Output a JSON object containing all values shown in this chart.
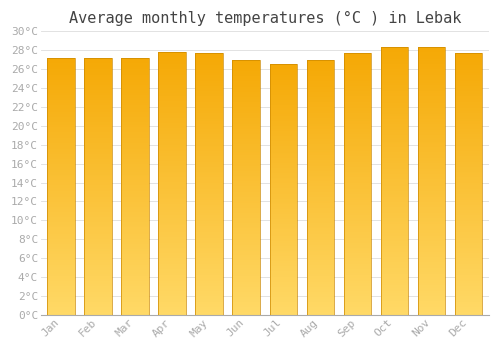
{
  "title": "Average monthly temperatures (°C ) in Lebak",
  "months": [
    "Jan",
    "Feb",
    "Mar",
    "Apr",
    "May",
    "Jun",
    "Jul",
    "Aug",
    "Sep",
    "Oct",
    "Nov",
    "Dec"
  ],
  "values": [
    27.2,
    27.2,
    27.2,
    27.8,
    27.7,
    27.0,
    26.6,
    27.0,
    27.7,
    28.4,
    28.4,
    27.7
  ],
  "bar_color_top": "#F5A800",
  "bar_color_bottom": "#FFD966",
  "bar_edge_color": "#CC8800",
  "ylim": [
    0,
    30
  ],
  "ytick_step": 2,
  "background_color": "#FFFFFF",
  "plot_bg_color": "#FFFFFF",
  "grid_color": "#DDDDDD",
  "title_fontsize": 11,
  "tick_fontsize": 8,
  "tick_color": "#AAAAAA",
  "font_family": "monospace",
  "bar_width": 0.75
}
